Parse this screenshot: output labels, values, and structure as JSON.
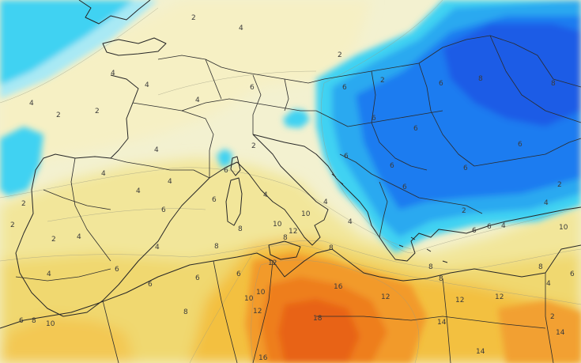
{
  "colors": {
    "base": "#f3f1d0",
    "pale_yellow": "#f6f0bf",
    "light_yellow": "#f2e69a",
    "yellow": "#f0d870",
    "gold": "#f3c040",
    "orange": "#f29a2a",
    "deep_orange": "#ee7e1c",
    "red_orange": "#e86418",
    "cyan_light": "#9fe6f4",
    "cyan": "#3fd2f2",
    "sky": "#2aa9f0",
    "blue": "#1a7cf0",
    "deep_blue": "#1a5ce6",
    "land_lines": "#2b2b2b",
    "iso_lines": "#9a9a80"
  },
  "isotherm_labels": [
    {
      "id": "l01",
      "text": "2"
    },
    {
      "id": "l02",
      "text": "4"
    },
    {
      "id": "l03",
      "text": "2"
    },
    {
      "id": "l04",
      "text": "4"
    },
    {
      "id": "l05",
      "text": "4"
    },
    {
      "id": "l06",
      "text": "6"
    },
    {
      "id": "l07",
      "text": "2"
    },
    {
      "id": "l08",
      "text": "2"
    },
    {
      "id": "l09",
      "text": "6"
    },
    {
      "id": "l10",
      "text": "4"
    },
    {
      "id": "l11",
      "text": "2"
    },
    {
      "id": "l12",
      "text": "8"
    },
    {
      "id": "l13",
      "text": "6"
    },
    {
      "id": "l14",
      "text": "8"
    },
    {
      "id": "l15",
      "text": "4"
    },
    {
      "id": "l16",
      "text": "6"
    },
    {
      "id": "l17",
      "text": "2"
    },
    {
      "id": "l18",
      "text": "6"
    },
    {
      "id": "l19",
      "text": "6"
    },
    {
      "id": "l20",
      "text": "6"
    },
    {
      "id": "l21",
      "text": "6"
    },
    {
      "id": "l22",
      "text": "6"
    },
    {
      "id": "l23",
      "text": "6"
    },
    {
      "id": "l24",
      "text": "4"
    },
    {
      "id": "l25",
      "text": "2"
    },
    {
      "id": "l26",
      "text": "4"
    },
    {
      "id": "l27",
      "text": "2"
    },
    {
      "id": "l28",
      "text": "4"
    },
    {
      "id": "l29",
      "text": "4"
    },
    {
      "id": "l30",
      "text": "4"
    },
    {
      "id": "l31",
      "text": "4"
    },
    {
      "id": "l32",
      "text": "6"
    },
    {
      "id": "l33",
      "text": "2"
    },
    {
      "id": "l34",
      "text": "2"
    },
    {
      "id": "l35",
      "text": "6"
    },
    {
      "id": "l36",
      "text": "4"
    },
    {
      "id": "l37",
      "text": "4"
    },
    {
      "id": "l38",
      "text": "6"
    },
    {
      "id": "l39",
      "text": "8"
    },
    {
      "id": "l40",
      "text": "8"
    },
    {
      "id": "l41",
      "text": "8"
    },
    {
      "id": "l42",
      "text": "10"
    },
    {
      "id": "l43",
      "text": "10"
    },
    {
      "id": "l44",
      "text": "12"
    },
    {
      "id": "l45",
      "text": "12"
    },
    {
      "id": "l46",
      "text": "8"
    },
    {
      "id": "l47",
      "text": "8"
    },
    {
      "id": "l48",
      "text": "6"
    },
    {
      "id": "l49",
      "text": "4"
    },
    {
      "id": "l50",
      "text": "6"
    },
    {
      "id": "l51",
      "text": "6"
    },
    {
      "id": "l52",
      "text": "6"
    },
    {
      "id": "l53",
      "text": "4"
    },
    {
      "id": "l54",
      "text": "8"
    },
    {
      "id": "l55",
      "text": "6"
    },
    {
      "id": "l56",
      "text": "8"
    },
    {
      "id": "l57",
      "text": "10"
    },
    {
      "id": "l58",
      "text": "10"
    },
    {
      "id": "l59",
      "text": "12"
    },
    {
      "id": "l60",
      "text": "16"
    },
    {
      "id": "l61",
      "text": "12"
    },
    {
      "id": "l62",
      "text": "18"
    },
    {
      "id": "l63",
      "text": "14"
    },
    {
      "id": "l64",
      "text": "12"
    },
    {
      "id": "l65",
      "text": "14"
    },
    {
      "id": "l66",
      "text": "12"
    },
    {
      "id": "l67",
      "text": "14"
    },
    {
      "id": "l68",
      "text": "16"
    },
    {
      "id": "l69",
      "text": "6"
    },
    {
      "id": "l70",
      "text": "8"
    },
    {
      "id": "l71",
      "text": "10"
    },
    {
      "id": "l72",
      "text": "2"
    },
    {
      "id": "l73",
      "text": "6"
    },
    {
      "id": "l74",
      "text": "4"
    },
    {
      "id": "l75",
      "text": "6"
    },
    {
      "id": "l76",
      "text": "4"
    },
    {
      "id": "l77",
      "text": "8"
    },
    {
      "id": "l78",
      "text": "10"
    },
    {
      "id": "l79",
      "text": "4"
    },
    {
      "id": "l80",
      "text": "2"
    }
  ]
}
